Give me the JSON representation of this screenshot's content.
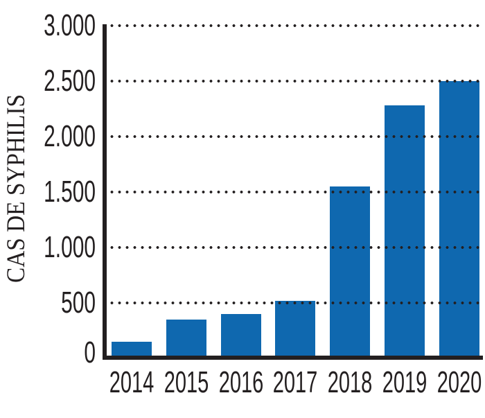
{
  "chart_data": {
    "type": "bar",
    "title": "",
    "xlabel": "",
    "ylabel": "CAS DE SYPHILIS",
    "categories": [
      "2014",
      "2015",
      "2016",
      "2017",
      "2018",
      "2019",
      "2020"
    ],
    "values": [
      150,
      350,
      400,
      520,
      1550,
      2280,
      2500
    ],
    "ylim": [
      0,
      3000
    ],
    "ytick_step": 500,
    "ytick_labels": [
      "0",
      "500",
      "1.000",
      "1.500",
      "2.000",
      "2.500",
      "3.000"
    ],
    "legend": "none",
    "grid": "horizontal dotted lines drawn over bars",
    "colors": {
      "bar": "#0f68af",
      "axis": "#231f20",
      "grid_dots": "#231f20",
      "text": "#231f20",
      "background": "#ffffff"
    }
  }
}
